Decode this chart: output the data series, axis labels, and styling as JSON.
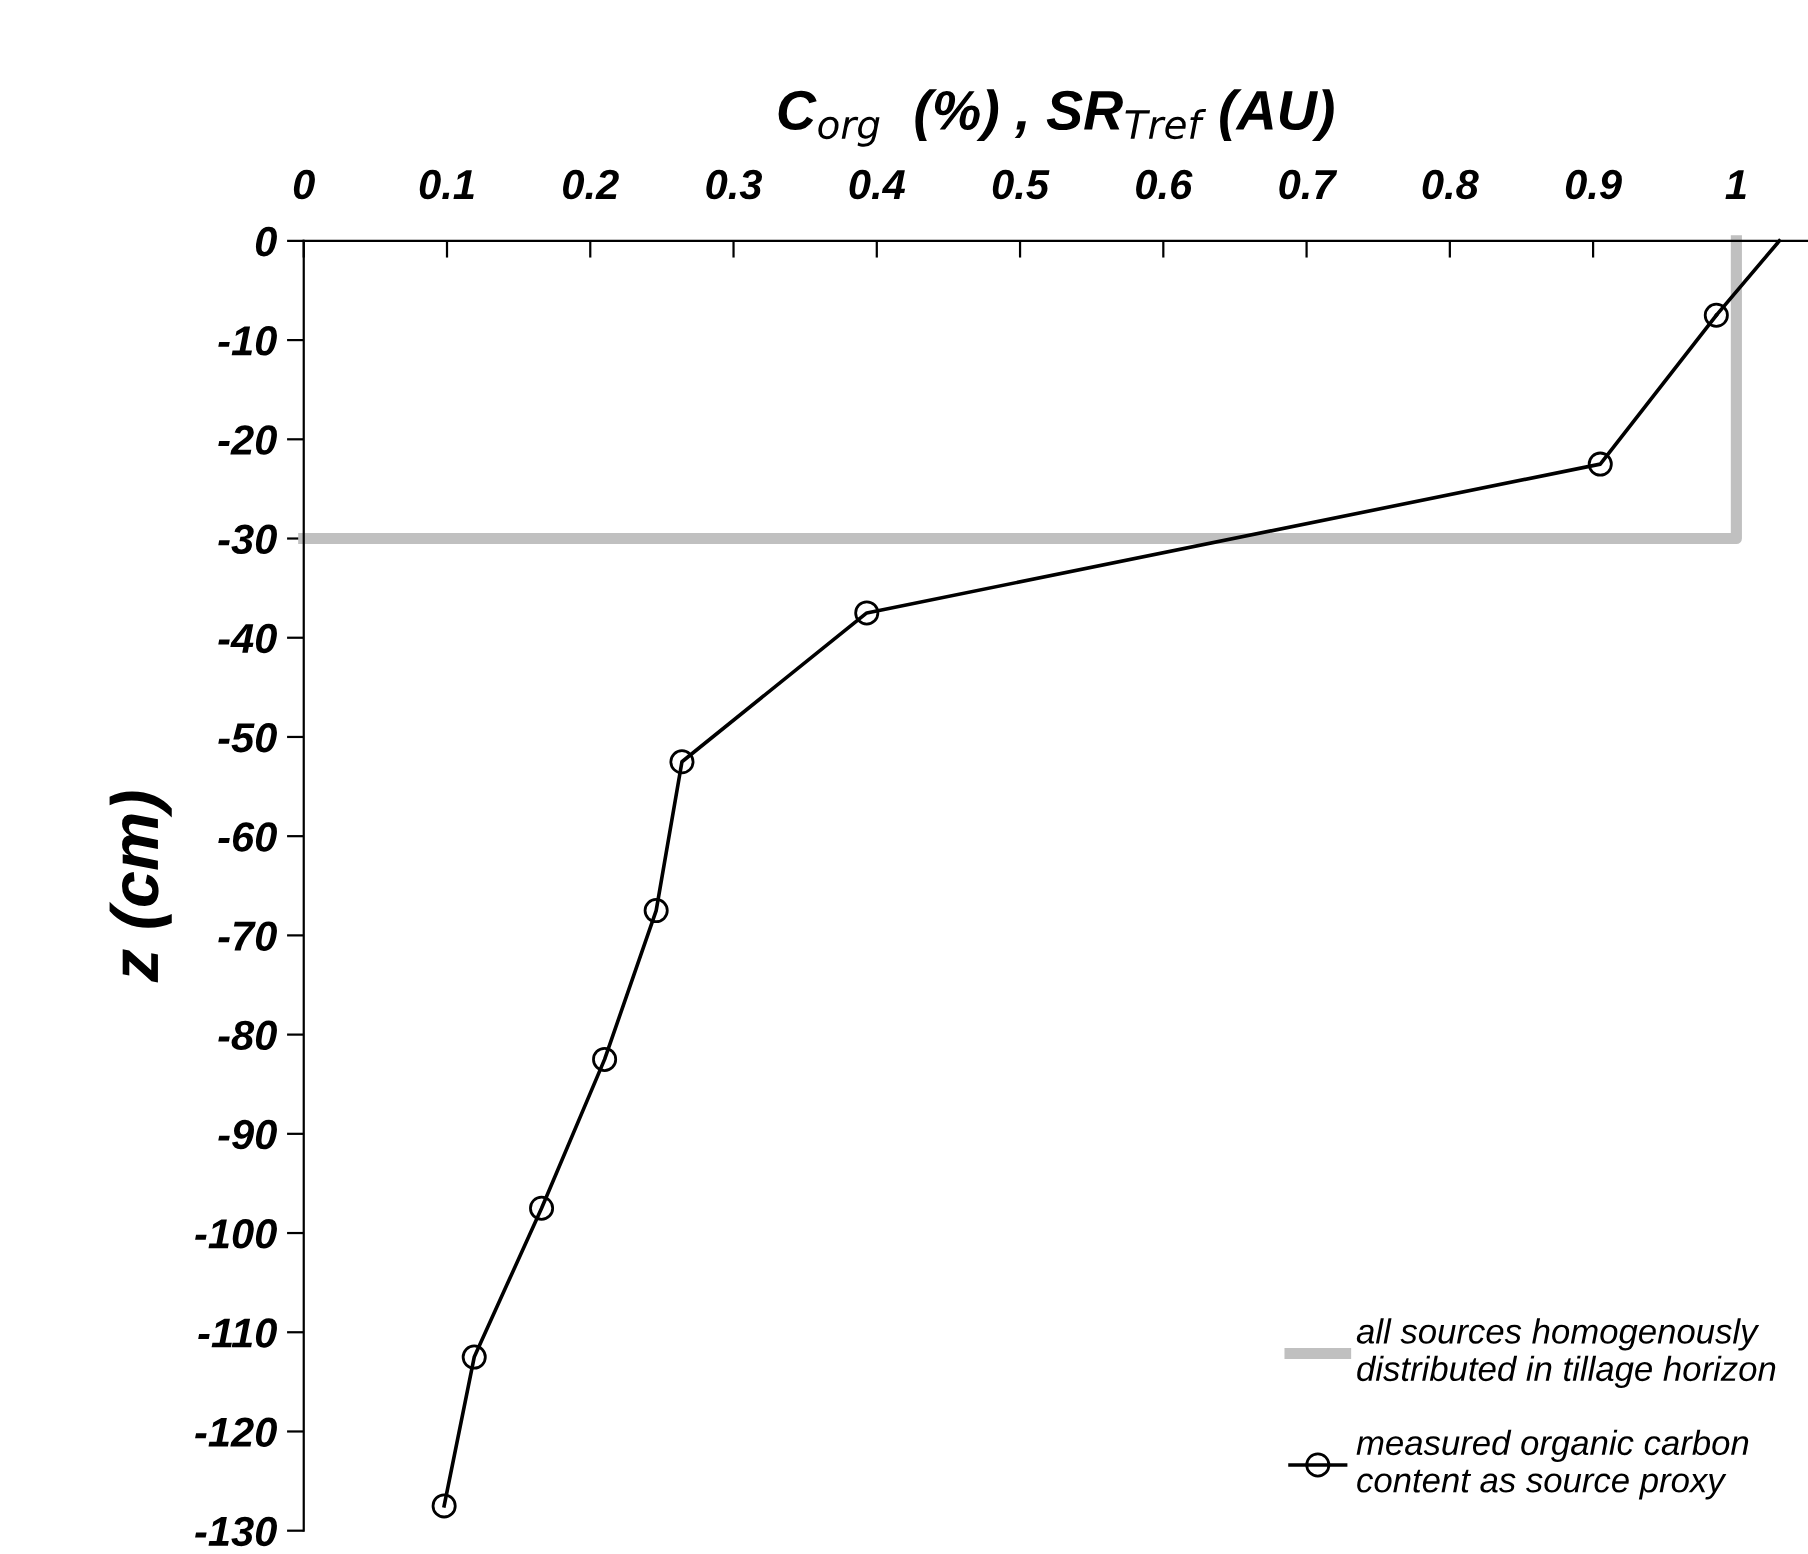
{
  "chart_data": {
    "type": "line",
    "xlabel": "C$_{org}$  (%) , SR$_{Tref}$ (AU)",
    "ylabel": "z (cm)",
    "xlim": [
      0,
      1.05
    ],
    "xticks": [
      0,
      0.1,
      0.2,
      0.3,
      0.4,
      0.5,
      0.6,
      0.7,
      0.8,
      0.9,
      1
    ],
    "ylim": [
      -130,
      0
    ],
    "yticks": [
      0,
      -10,
      -20,
      -30,
      -40,
      -50,
      -60,
      -70,
      -80,
      -90,
      -100,
      -110,
      -120,
      -130
    ],
    "grid": false,
    "legend": "bottom right",
    "series": [
      {
        "name": "all sources homogenously\ndistributed in tillage horizon",
        "color": "#c0c0c0",
        "marker": "none",
        "x": [
          0,
          1,
          1
        ],
        "values": [
          -30,
          -30,
          0
        ]
      },
      {
        "name": "measured organic carbon\ncontent as source proxy",
        "color": "#000000",
        "marker": "circle",
        "x": [
          0.986,
          0.905,
          0.393,
          0.264,
          0.246,
          0.21,
          0.166,
          0.119,
          0.098
        ],
        "values": [
          -7.5,
          -22.5,
          -37.5,
          -52.5,
          -67.5,
          -82.5,
          -97.5,
          -112.5,
          -127.5
        ]
      },
      {
        "color": "#000000",
        "marker": "none",
        "x": [
          1.03,
          0.986
        ],
        "values": [
          0,
          -7.5
        ]
      }
    ]
  }
}
